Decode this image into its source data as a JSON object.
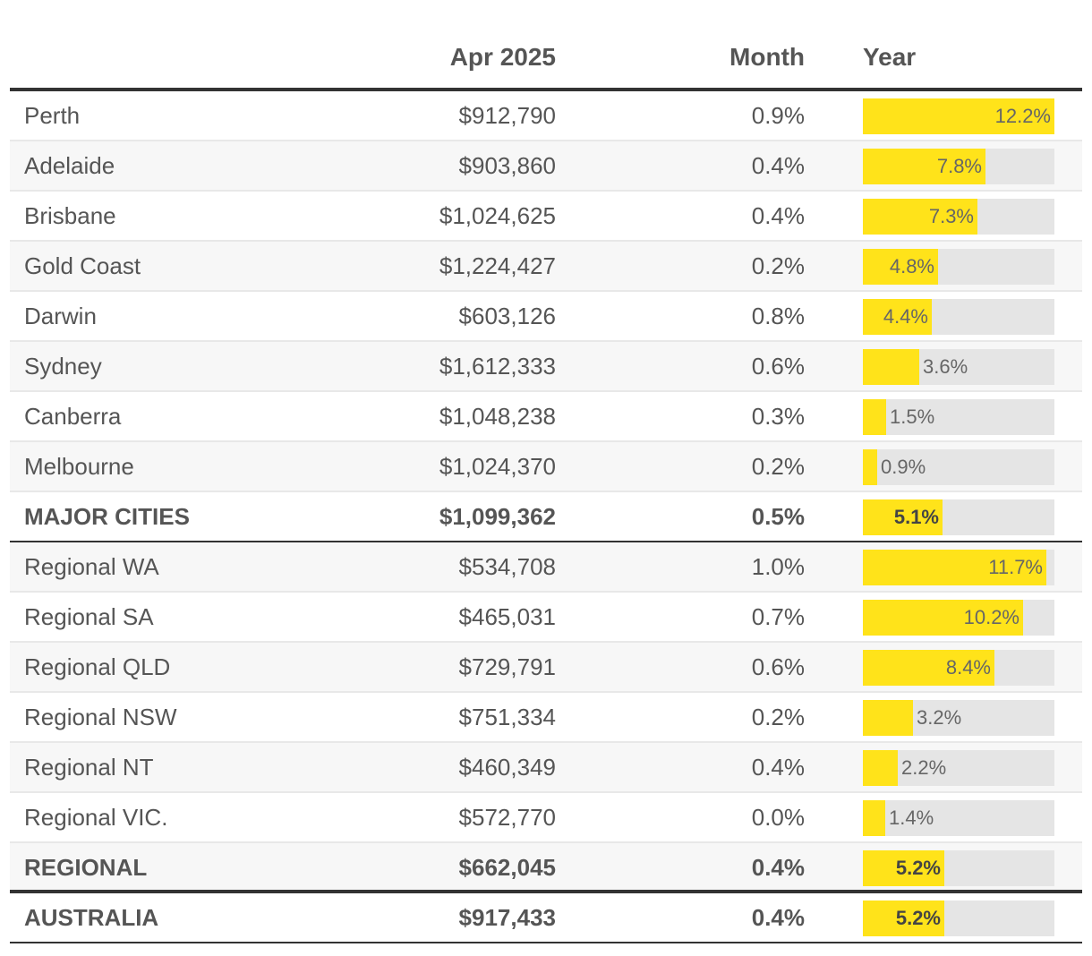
{
  "header": {
    "col_price": "Apr 2025",
    "col_month": "Month",
    "col_year": "Year"
  },
  "colors": {
    "bar_fill": "#ffe31a",
    "bar_track": "#e5e5e5",
    "rule": "#333333"
  },
  "chart_data": {
    "type": "table",
    "value_max": 12.2,
    "rows": [
      {
        "name": "Perth",
        "price": "$912,790",
        "month": "0.9%",
        "year": 12.2,
        "year_label": "12.2%",
        "kind": "city"
      },
      {
        "name": "Adelaide",
        "price": "$903,860",
        "month": "0.4%",
        "year": 7.8,
        "year_label": "7.8%",
        "kind": "city"
      },
      {
        "name": "Brisbane",
        "price": "$1,024,625",
        "month": "0.4%",
        "year": 7.3,
        "year_label": "7.3%",
        "kind": "city"
      },
      {
        "name": "Gold Coast",
        "price": "$1,224,427",
        "month": "0.2%",
        "year": 4.8,
        "year_label": "4.8%",
        "kind": "city"
      },
      {
        "name": "Darwin",
        "price": "$603,126",
        "month": "0.8%",
        "year": 4.4,
        "year_label": "4.4%",
        "kind": "city"
      },
      {
        "name": "Sydney",
        "price": "$1,612,333",
        "month": "0.6%",
        "year": 3.6,
        "year_label": "3.6%",
        "kind": "city"
      },
      {
        "name": "Canberra",
        "price": "$1,048,238",
        "month": "0.3%",
        "year": 1.5,
        "year_label": "1.5%",
        "kind": "city"
      },
      {
        "name": "Melbourne",
        "price": "$1,024,370",
        "month": "0.2%",
        "year": 0.9,
        "year_label": "0.9%",
        "kind": "city"
      },
      {
        "name": "MAJOR CITIES",
        "price": "$1,099,362",
        "month": "0.5%",
        "year": 5.1,
        "year_label": "5.1%",
        "kind": "total"
      },
      {
        "name": "Regional WA",
        "price": "$534,708",
        "month": "1.0%",
        "year": 11.7,
        "year_label": "11.7%",
        "kind": "region"
      },
      {
        "name": "Regional SA",
        "price": "$465,031",
        "month": "0.7%",
        "year": 10.2,
        "year_label": "10.2%",
        "kind": "region"
      },
      {
        "name": "Regional QLD",
        "price": "$729,791",
        "month": "0.6%",
        "year": 8.4,
        "year_label": "8.4%",
        "kind": "region"
      },
      {
        "name": "Regional NSW",
        "price": "$751,334",
        "month": "0.2%",
        "year": 3.2,
        "year_label": "3.2%",
        "kind": "region"
      },
      {
        "name": "Regional NT",
        "price": "$460,349",
        "month": "0.4%",
        "year": 2.2,
        "year_label": "2.2%",
        "kind": "region"
      },
      {
        "name": "Regional VIC.",
        "price": "$572,770",
        "month": "0.0%",
        "year": 1.4,
        "year_label": "1.4%",
        "kind": "region"
      },
      {
        "name": "REGIONAL",
        "price": "$662,045",
        "month": "0.4%",
        "year": 5.2,
        "year_label": "5.2%",
        "kind": "total"
      },
      {
        "name": "AUSTRALIA",
        "price": "$917,433",
        "month": "0.4%",
        "year": 5.2,
        "year_label": "5.2%",
        "kind": "total"
      }
    ]
  }
}
